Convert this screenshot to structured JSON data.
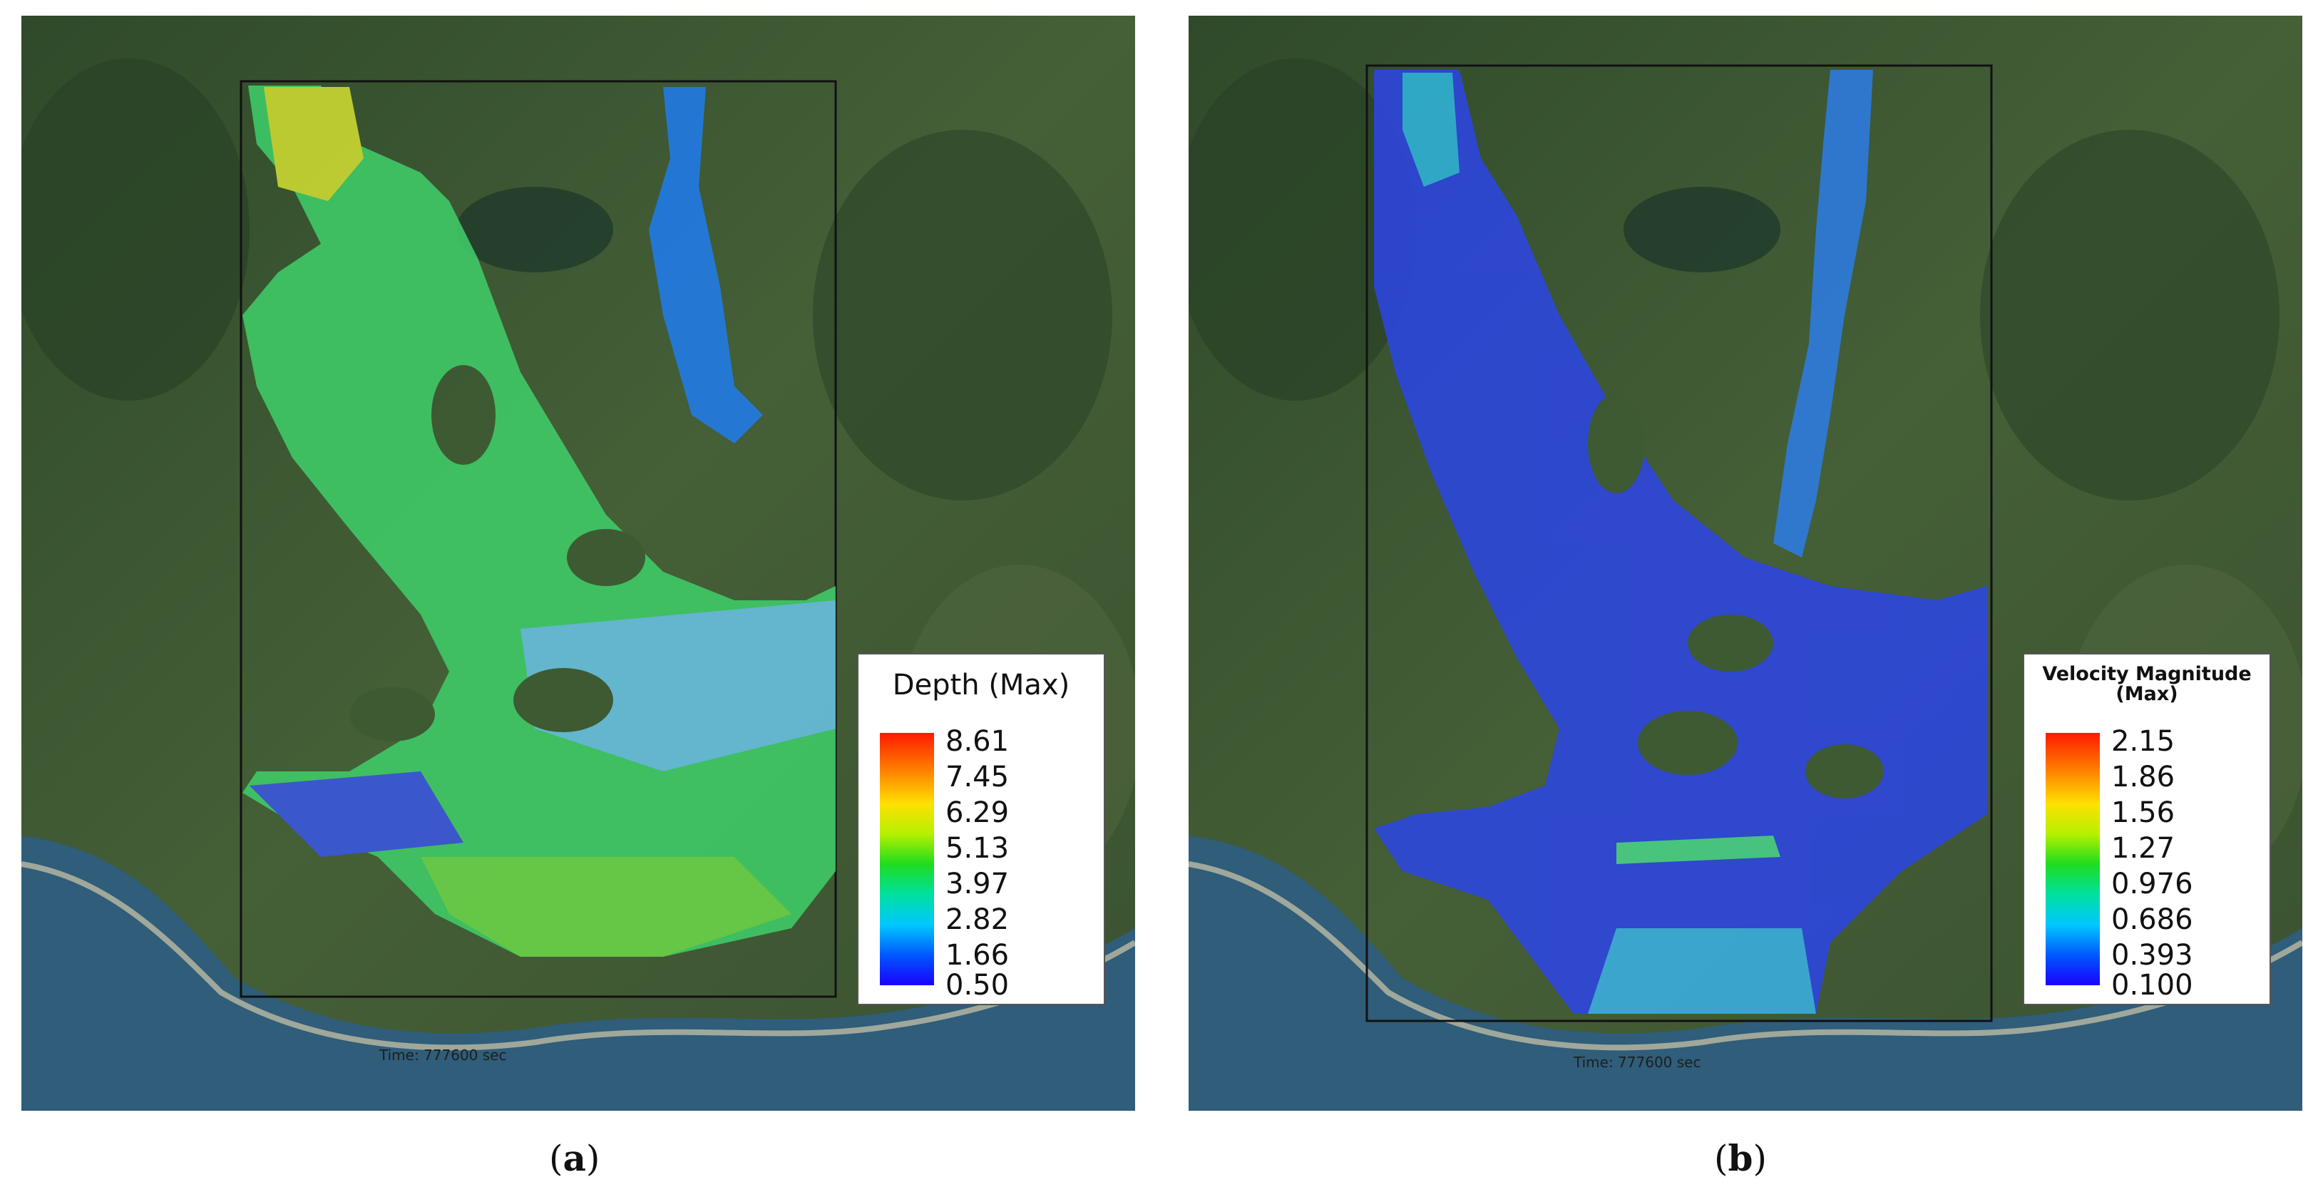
{
  "panels": [
    {
      "id": "a",
      "caption_letter": "a",
      "legend": {
        "title": "Depth (Max)",
        "ticks": [
          "8.61",
          "7.45",
          "6.29",
          "5.13",
          "3.97",
          "2.82",
          "1.66",
          "0.50"
        ]
      },
      "time_label": "Time: 777600 sec"
    },
    {
      "id": "b",
      "caption_letter": "b",
      "legend": {
        "title": "Velocity Magnitude (Max)",
        "ticks": [
          "2.15",
          "1.86",
          "1.56",
          "1.27",
          "0.976",
          "0.686",
          "0.393",
          "0.100"
        ]
      },
      "time_label": "Time: 777600 sec"
    }
  ],
  "colors": {
    "colorbar_top": "#ff1a00",
    "colorbar_mid": "#1fdc1f",
    "colorbar_bottom": "#1a00ff",
    "depth_flood": "#3fd06a",
    "velocity_flood": "#2c45e8",
    "sea": "#2f5d7a",
    "land": "#3d5a33"
  },
  "icons": []
}
